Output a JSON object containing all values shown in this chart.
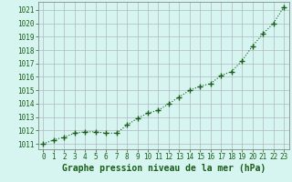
{
  "x": [
    0,
    1,
    2,
    3,
    4,
    5,
    6,
    7,
    8,
    9,
    10,
    11,
    12,
    13,
    14,
    15,
    16,
    17,
    18,
    19,
    20,
    21,
    22,
    23
  ],
  "y": [
    1011.0,
    1011.3,
    1011.5,
    1011.8,
    1011.9,
    1011.9,
    1011.8,
    1011.8,
    1012.4,
    1012.9,
    1013.3,
    1013.5,
    1014.0,
    1014.5,
    1015.0,
    1015.3,
    1015.5,
    1016.1,
    1016.4,
    1017.2,
    1018.3,
    1019.2,
    1020.0,
    1021.2
  ],
  "line_color": "#1a5c1a",
  "marker": "+",
  "marker_size": 4,
  "bg_color": "#d6f5f0",
  "grid_color": "#b0b8c0",
  "xlabel": "Graphe pression niveau de la mer (hPa)",
  "tick_color": "#1a5c1a",
  "ylim": [
    1010.6,
    1021.6
  ],
  "yticks": [
    1011,
    1012,
    1013,
    1014,
    1015,
    1016,
    1017,
    1018,
    1019,
    1020,
    1021
  ],
  "xtick_labels": [
    "0",
    "1",
    "2",
    "3",
    "4",
    "5",
    "6",
    "7",
    "8",
    "9",
    "10",
    "11",
    "12",
    "13",
    "14",
    "15",
    "16",
    "17",
    "18",
    "19",
    "20",
    "21",
    "22",
    "23"
  ],
  "spine_color": "#888888",
  "axis_fontsize": 5.5,
  "label_fontsize": 7
}
